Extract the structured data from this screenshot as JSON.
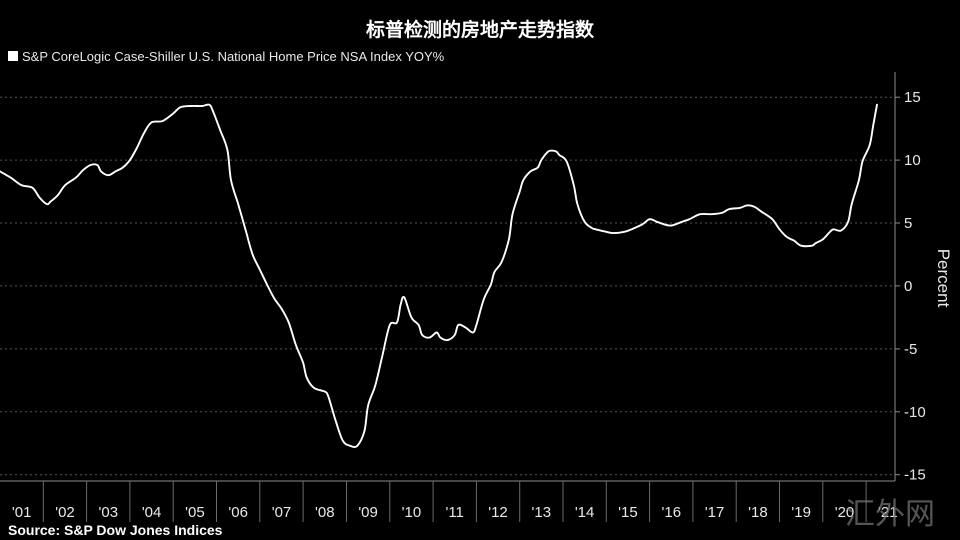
{
  "colors": {
    "background": "#000000",
    "line": "#ffffff",
    "legend_swatch": "#ffffff"
  },
  "source": "Source: S&P Dow Jones Indices",
  "watermark": "汇外网",
  "chart_data": {
    "type": "line",
    "title": "标普检测的房地产走势指数",
    "xlabel": "",
    "ylabel": "Percent",
    "xlim": [
      "2001-01",
      "2021-09"
    ],
    "ylim": [
      -15.5,
      17
    ],
    "yticks": [
      15,
      10,
      5,
      0,
      -5,
      -10,
      -15
    ],
    "xtick_labels": [
      "'01",
      "'02",
      "'03",
      "'04",
      "'05",
      "'06",
      "'07",
      "'08",
      "'09",
      "'10",
      "'11",
      "'12",
      "'13",
      "'14",
      "'15",
      "'16",
      "'17",
      "'18",
      "'19",
      "'20",
      "'21"
    ],
    "grid": true,
    "y_axis_side": "right",
    "legend_position": "top-left",
    "series": [
      {
        "name": "S&P CoreLogic Case-Shiller U.S. National Home Price NSA Index YOY%",
        "x": [
          "2001-01",
          "2001-04",
          "2001-07",
          "2001-10",
          "2001-12",
          "2002-02",
          "2002-03",
          "2002-05",
          "2002-07",
          "2002-10",
          "2002-12",
          "2003-02",
          "2003-04",
          "2003-05",
          "2003-07",
          "2003-09",
          "2003-11",
          "2004-01",
          "2004-03",
          "2004-05",
          "2004-07",
          "2004-10",
          "2005-01",
          "2005-03",
          "2005-06",
          "2005-09",
          "2005-11",
          "2005-12",
          "2006-02",
          "2006-04",
          "2006-05",
          "2006-07",
          "2006-09",
          "2006-11",
          "2007-01",
          "2007-03",
          "2007-05",
          "2007-07",
          "2007-09",
          "2007-11",
          "2008-01",
          "2008-02",
          "2008-04",
          "2008-07",
          "2008-08",
          "2008-10",
          "2008-12",
          "2009-02",
          "2009-04",
          "2009-06",
          "2009-07",
          "2009-09",
          "2009-11",
          "2010-01",
          "2010-03",
          "2010-04",
          "2010-05",
          "2010-07",
          "2010-09",
          "2010-10",
          "2010-12",
          "2011-02",
          "2011-03",
          "2011-05",
          "2011-07",
          "2011-08",
          "2011-10",
          "2011-12",
          "2012-01",
          "2012-03",
          "2012-05",
          "2012-06",
          "2012-08",
          "2012-10",
          "2012-11",
          "2013-01",
          "2013-02",
          "2013-04",
          "2013-06",
          "2013-07",
          "2013-09",
          "2013-11",
          "2013-12",
          "2014-02",
          "2014-04",
          "2014-05",
          "2014-07",
          "2014-09",
          "2014-10",
          "2015-01",
          "2015-03",
          "2015-06",
          "2015-08",
          "2015-11",
          "2016-01",
          "2016-03",
          "2016-05",
          "2016-07",
          "2016-10",
          "2016-12",
          "2017-03",
          "2017-06",
          "2017-09",
          "2017-11",
          "2018-02",
          "2018-04",
          "2018-06",
          "2018-08",
          "2018-11",
          "2019-01",
          "2019-03",
          "2019-05",
          "2019-07",
          "2019-10",
          "2019-11",
          "2020-01",
          "2020-03",
          "2020-04",
          "2020-06",
          "2020-08",
          "2020-09",
          "2020-11",
          "2020-12",
          "2021-02",
          "2021-03",
          "2021-04"
        ],
        "y": [
          9.1,
          8.6,
          8.0,
          7.8,
          7.0,
          6.5,
          6.7,
          7.2,
          8.0,
          8.6,
          9.2,
          9.6,
          9.6,
          9.1,
          8.8,
          9.1,
          9.4,
          10.0,
          11.0,
          12.2,
          13.0,
          13.1,
          13.7,
          14.2,
          14.3,
          14.3,
          14.4,
          13.9,
          12.4,
          10.8,
          8.4,
          6.5,
          4.5,
          2.5,
          1.3,
          0.1,
          -1.0,
          -1.8,
          -2.9,
          -4.7,
          -6.1,
          -7.3,
          -8.1,
          -8.4,
          -8.8,
          -10.7,
          -12.3,
          -12.7,
          -12.7,
          -11.5,
          -9.5,
          -7.9,
          -5.5,
          -3.1,
          -2.9,
          -1.5,
          -0.9,
          -2.5,
          -3.1,
          -3.9,
          -4.1,
          -3.7,
          -4.1,
          -4.3,
          -3.9,
          -3.1,
          -3.3,
          -3.7,
          -3.1,
          -1.1,
          0.1,
          1.1,
          1.9,
          3.7,
          5.7,
          7.5,
          8.4,
          9.1,
          9.4,
          10.0,
          10.7,
          10.7,
          10.4,
          9.9,
          8.0,
          6.5,
          5.1,
          4.6,
          4.5,
          4.3,
          4.2,
          4.3,
          4.5,
          4.9,
          5.3,
          5.1,
          4.9,
          4.8,
          5.1,
          5.3,
          5.7,
          5.7,
          5.8,
          6.1,
          6.2,
          6.4,
          6.3,
          5.9,
          5.3,
          4.5,
          3.9,
          3.6,
          3.2,
          3.2,
          3.4,
          3.7,
          4.3,
          4.5,
          4.4,
          5.1,
          6.5,
          8.4,
          9.9,
          11.2,
          12.8,
          14.4
        ]
      }
    ]
  }
}
